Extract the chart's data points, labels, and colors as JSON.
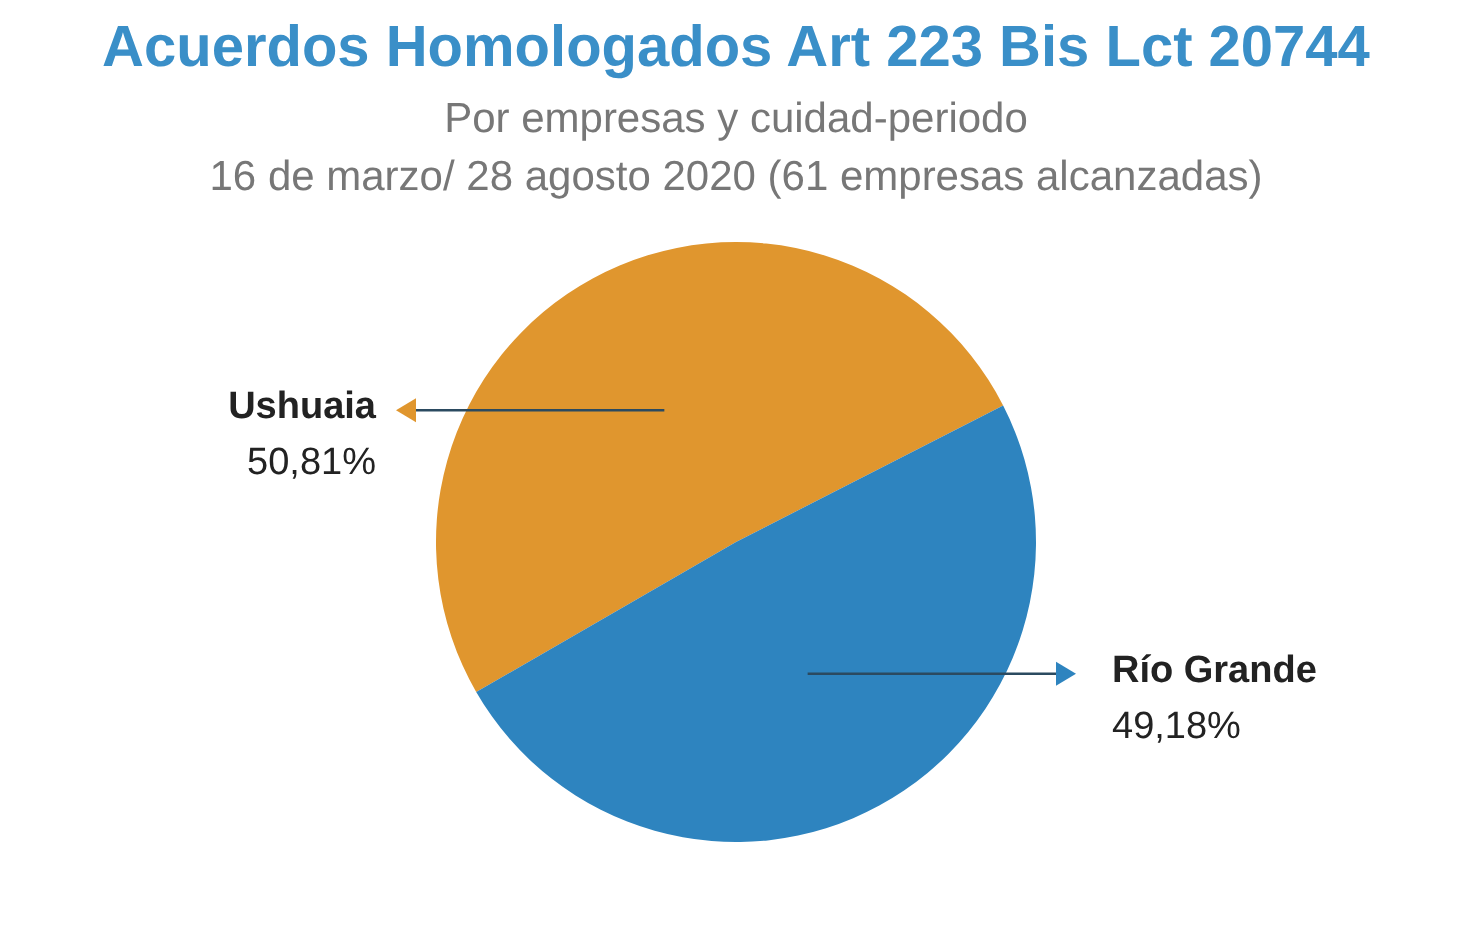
{
  "chart_data": {
    "type": "pie",
    "title": "Acuerdos Homologados Art 223 Bis Lct 20744",
    "subtitle": "Por empresas y cuidad-periodo\n16 de marzo/ 28 agosto 2020 (61 empresas alcanzadas)",
    "categories": [
      "Ushuaia",
      "Río Grande"
    ],
    "values": [
      50.81,
      49.18
    ],
    "colors": [
      "#e0962e",
      "#2e84bf"
    ],
    "value_labels": [
      "50,81%",
      "49,18%"
    ]
  }
}
